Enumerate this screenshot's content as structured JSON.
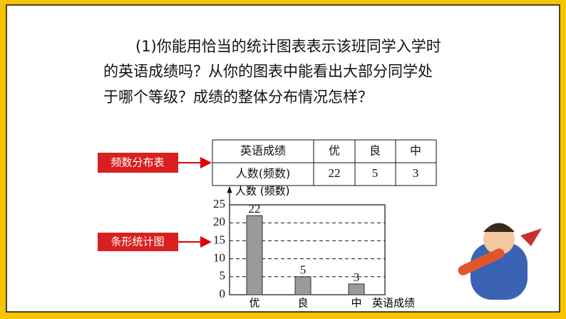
{
  "question": {
    "lines": [
      "(1)你能用恰当的统计图表表示该班同学入学时",
      "的英语成绩吗？从你的图表中能看出大部分同学处",
      "于哪个等级？成绩的整体分布情况怎样？"
    ]
  },
  "labels": {
    "table": "频数分布表",
    "chart": "条形统计图"
  },
  "table": {
    "rows": [
      [
        "英语成绩",
        "优",
        "良",
        "中"
      ],
      [
        "人数(频数)",
        22,
        5,
        3
      ]
    ]
  },
  "chart_data": {
    "type": "bar",
    "x_label": "英语成绩",
    "y_label": "人数 (频数)",
    "categories": [
      "优",
      "良",
      "中"
    ],
    "values": [
      22,
      5,
      3
    ],
    "color": "#9a9a9a",
    "ylim": [
      0,
      25
    ],
    "yticks": [
      0,
      5,
      10,
      15,
      20,
      25
    ],
    "grid": true
  }
}
